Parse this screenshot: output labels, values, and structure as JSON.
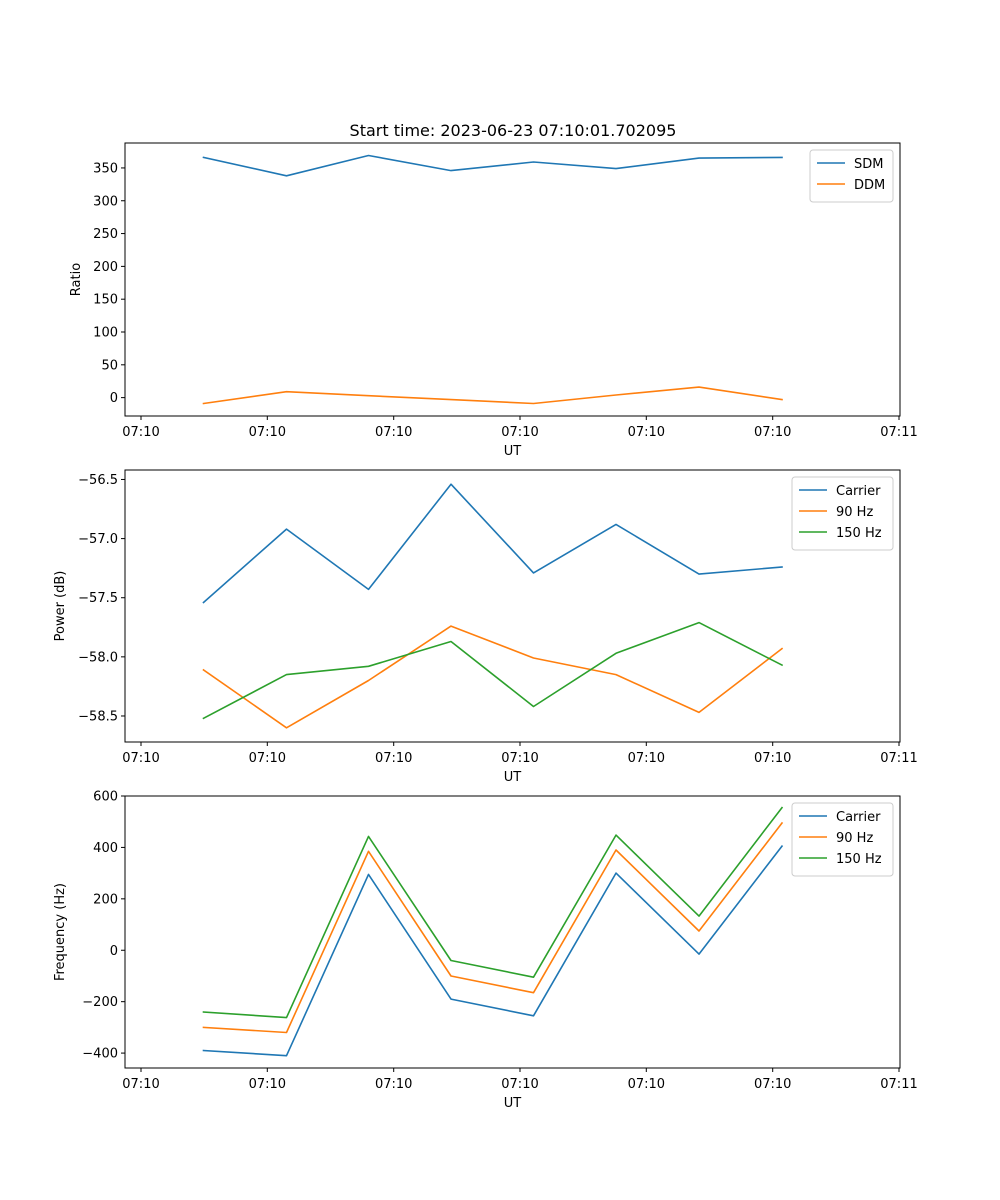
{
  "figure": {
    "title": "Start time: 2023-06-23 07:10:01.702095"
  },
  "chart_data": [
    {
      "type": "line",
      "title": "Start time: 2023-06-23 07:10:01.702095",
      "xlabel": "UT",
      "ylabel": "Ratio",
      "x_tick_labels": [
        "07:10",
        "07:10",
        "07:10",
        "07:10",
        "07:10",
        "07:10",
        "07:11"
      ],
      "y_ticks": [
        0,
        50,
        100,
        150,
        200,
        250,
        300,
        350
      ],
      "y_tick_labels": [
        "0",
        "50",
        "100",
        "150",
        "200",
        "250",
        "300",
        "350"
      ],
      "ylim": [
        -28,
        388
      ],
      "legend_position": "upper-right",
      "grid": false,
      "series": [
        {
          "name": "SDM",
          "color": "#1f77b4",
          "values": [
            366,
            338,
            369,
            346,
            359,
            349,
            365,
            366
          ]
        },
        {
          "name": "DDM",
          "color": "#ff7f0e",
          "values": [
            -9,
            9,
            3,
            -3,
            -9,
            4,
            16,
            -3
          ]
        }
      ]
    },
    {
      "type": "line",
      "xlabel": "UT",
      "ylabel": "Power (dB)",
      "x_tick_labels": [
        "07:10",
        "07:10",
        "07:10",
        "07:10",
        "07:10",
        "07:10",
        "07:11"
      ],
      "y_ticks": [
        -58.5,
        -58.0,
        -57.5,
        -57.0,
        -56.5
      ],
      "y_tick_labels": [
        "−58.5",
        "−58.0",
        "−57.5",
        "−57.0",
        "−56.5"
      ],
      "ylim": [
        -58.72,
        -56.42
      ],
      "legend_position": "upper-right",
      "grid": false,
      "series": [
        {
          "name": "Carrier",
          "color": "#1f77b4",
          "values": [
            -57.54,
            -56.92,
            -57.43,
            -56.54,
            -57.29,
            -56.88,
            -57.3,
            -57.24
          ]
        },
        {
          "name": "90 Hz",
          "color": "#ff7f0e",
          "values": [
            -58.11,
            -58.6,
            -58.2,
            -57.74,
            -58.01,
            -58.15,
            -58.47,
            -57.93
          ]
        },
        {
          "name": "150 Hz",
          "color": "#2ca02c",
          "values": [
            -58.52,
            -58.15,
            -58.08,
            -57.87,
            -58.42,
            -57.97,
            -57.71,
            -58.07
          ]
        }
      ]
    },
    {
      "type": "line",
      "xlabel": "UT",
      "ylabel": "Frequency (Hz)",
      "x_tick_labels": [
        "07:10",
        "07:10",
        "07:10",
        "07:10",
        "07:10",
        "07:10",
        "07:11"
      ],
      "y_ticks": [
        -400,
        -200,
        0,
        200,
        400,
        600
      ],
      "y_tick_labels": [
        "−400",
        "−200",
        "0",
        "200",
        "400",
        "600"
      ],
      "ylim": [
        -458,
        600
      ],
      "legend_position": "upper-right",
      "grid": false,
      "series": [
        {
          "name": "Carrier",
          "color": "#1f77b4",
          "values": [
            -390,
            -410,
            295,
            -190,
            -255,
            300,
            -15,
            405
          ]
        },
        {
          "name": "90 Hz",
          "color": "#ff7f0e",
          "values": [
            -300,
            -320,
            385,
            -100,
            -165,
            390,
            75,
            495
          ]
        },
        {
          "name": "150 Hz",
          "color": "#2ca02c",
          "values": [
            -240,
            -262,
            443,
            -40,
            -105,
            448,
            133,
            555
          ]
        }
      ]
    }
  ]
}
